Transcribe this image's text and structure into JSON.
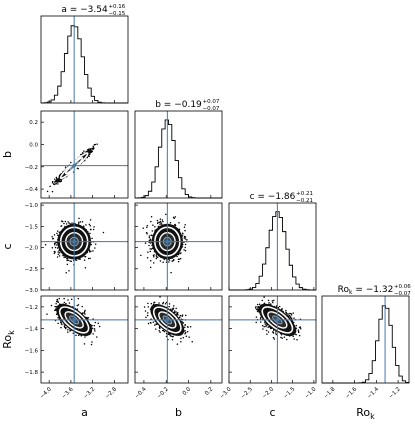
{
  "chart_data": {
    "type": "corner",
    "params": [
      {
        "name": "a",
        "label": "a",
        "median": -3.54,
        "plus": "+0.16",
        "minus": "−0.15",
        "title": "a = −3.54",
        "sd": 0.155,
        "range": [
          -4.15,
          -2.55
        ],
        "ticks": [
          -4.0,
          -3.6,
          -3.2,
          -2.8
        ],
        "tick_labels": [
          "−4.0",
          "−3.6",
          "−3.2",
          "−2.8"
        ]
      },
      {
        "name": "b",
        "label": "b",
        "median": -0.19,
        "plus": "+0.07",
        "minus": "−0.07",
        "title": "b = −0.19",
        "sd": 0.07,
        "range": [
          -0.48,
          0.3
        ],
        "ticks": [
          -0.4,
          -0.2,
          0.0,
          0.2
        ],
        "tick_labels": [
          "−0.4",
          "−0.2",
          "0.0",
          "0.2"
        ]
      },
      {
        "name": "c",
        "label": "c",
        "median": -1.86,
        "plus": "+0.21",
        "minus": "−0.21",
        "title": "c = −1.86",
        "sd": 0.21,
        "range": [
          -3.0,
          -0.95
        ],
        "ticks": [
          -3.0,
          -2.5,
          -2.0,
          -1.5,
          -1.0
        ],
        "tick_labels": [
          "−3.0",
          "−2.5",
          "−2.0",
          "−1.5",
          "−1.0"
        ]
      },
      {
        "name": "Ro_k",
        "label": "Ro",
        "label_sub": "k",
        "median": -1.32,
        "plus": "+0.06",
        "minus": "−0.07",
        "title": "Ro",
        "title_sub": "k",
        "title_rest": " = −1.32",
        "sd": 0.065,
        "range": [
          -1.9,
          -1.1
        ],
        "ticks": [
          -1.8,
          -1.6,
          -1.4,
          -1.2
        ],
        "tick_labels": [
          "−1.8",
          "−1.6",
          "−1.4",
          "−1.2"
        ]
      }
    ],
    "correlations": [
      [
        1,
        0.97,
        0.0,
        -0.5
      ],
      [
        0.97,
        1,
        0.0,
        -0.5
      ],
      [
        0.0,
        0.0,
        1,
        -0.5
      ],
      [
        -0.5,
        -0.5,
        -0.5,
        1
      ]
    ],
    "truth_color": "#4477aa",
    "sample_color": "#000000",
    "grid": false
  }
}
